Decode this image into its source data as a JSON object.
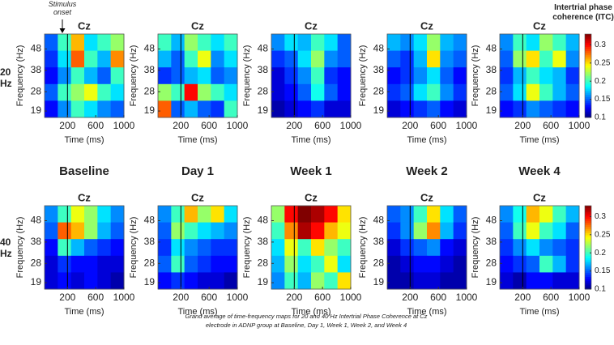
{
  "annotation": "Stimulus onset",
  "row_labels": [
    "20 Hz",
    "40 Hz"
  ],
  "column_labels": [
    "Baseline",
    "Day 1",
    "Week 1",
    "Week 2",
    "Week 4"
  ],
  "caption": "Grand average of time-frequency maps for 20 and 40 Hz Intertrial Phase Coherence at Cz electrode in ADNP group at Baseline, Day 1, Week 1, Week 2, and Week 4",
  "colorbars": [
    {
      "title": "Intertrial phase coherence (ITC)",
      "zlim": [
        0.1,
        0.33
      ],
      "zticks": [
        0.1,
        0.15,
        0.2,
        0.25,
        0.3
      ]
    },
    {
      "zlim": [
        0.1,
        0.33
      ],
      "zticks": [
        0.1,
        0.15,
        0.2,
        0.25,
        0.3
      ]
    }
  ],
  "chart_data": [
    {
      "type": "heatmap",
      "title": "Cz",
      "xlabel": "Time (ms)",
      "ylabel": "Frequency (Hz)",
      "xlim": [
        -125,
        1000
      ],
      "ylim": [
        16,
        55
      ],
      "xticks": [
        200,
        600,
        1000
      ],
      "yticks": [
        19,
        28,
        38,
        48
      ],
      "onset": 200,
      "values": [
        [
          0.15,
          0.2,
          0.26,
          0.18,
          0.2,
          0.22
        ],
        [
          0.14,
          0.18,
          0.28,
          0.2,
          0.17,
          0.27
        ],
        [
          0.13,
          0.16,
          0.2,
          0.17,
          0.15,
          0.2
        ],
        [
          0.15,
          0.2,
          0.22,
          0.24,
          0.2,
          0.18
        ],
        [
          0.13,
          0.16,
          0.2,
          0.18,
          0.16,
          0.15
        ]
      ]
    },
    {
      "type": "heatmap",
      "title": "Cz",
      "xlabel": "Time (ms)",
      "ylabel": "Frequency (Hz)",
      "xlim": [
        -125,
        1000
      ],
      "ylim": [
        16,
        55
      ],
      "xticks": [
        200,
        600,
        1000
      ],
      "yticks": [
        19,
        28,
        38,
        48
      ],
      "onset": 200,
      "values": [
        [
          0.2,
          0.17,
          0.22,
          0.2,
          0.18,
          0.2
        ],
        [
          0.17,
          0.15,
          0.2,
          0.24,
          0.16,
          0.18
        ],
        [
          0.14,
          0.15,
          0.17,
          0.18,
          0.15,
          0.16
        ],
        [
          0.22,
          0.2,
          0.3,
          0.22,
          0.2,
          0.18
        ],
        [
          0.28,
          0.15,
          0.17,
          0.15,
          0.14,
          0.2
        ]
      ]
    },
    {
      "type": "heatmap",
      "title": "Cz",
      "xlabel": "Time (ms)",
      "ylabel": "Frequency (Hz)",
      "xlim": [
        -125,
        1000
      ],
      "ylim": [
        16,
        55
      ],
      "xticks": [
        200,
        600,
        1000
      ],
      "yticks": [
        19,
        28,
        38,
        48
      ],
      "onset": 200,
      "values": [
        [
          0.16,
          0.18,
          0.17,
          0.2,
          0.18,
          0.15
        ],
        [
          0.14,
          0.15,
          0.18,
          0.22,
          0.16,
          0.15
        ],
        [
          0.12,
          0.14,
          0.16,
          0.2,
          0.14,
          0.13
        ],
        [
          0.12,
          0.13,
          0.15,
          0.19,
          0.15,
          0.13
        ],
        [
          0.11,
          0.12,
          0.13,
          0.14,
          0.12,
          0.12
        ]
      ]
    },
    {
      "type": "heatmap",
      "title": "Cz",
      "xlabel": "Time (ms)",
      "ylabel": "Frequency (Hz)",
      "xlim": [
        -125,
        1000
      ],
      "ylim": [
        16,
        55
      ],
      "xticks": [
        200,
        600,
        1000
      ],
      "yticks": [
        19,
        28,
        38,
        48
      ],
      "onset": 200,
      "values": [
        [
          0.17,
          0.16,
          0.18,
          0.22,
          0.17,
          0.16
        ],
        [
          0.15,
          0.14,
          0.17,
          0.25,
          0.16,
          0.15
        ],
        [
          0.13,
          0.14,
          0.16,
          0.18,
          0.15,
          0.13
        ],
        [
          0.14,
          0.15,
          0.18,
          0.2,
          0.16,
          0.14
        ],
        [
          0.12,
          0.13,
          0.14,
          0.15,
          0.13,
          0.12
        ]
      ]
    },
    {
      "type": "heatmap",
      "title": "Cz",
      "xlabel": "Time (ms)",
      "ylabel": "Frequency (Hz)",
      "xlim": [
        -125,
        1000
      ],
      "ylim": [
        16,
        55
      ],
      "xticks": [
        200,
        600,
        1000
      ],
      "yticks": [
        19,
        28,
        38,
        48
      ],
      "onset": 200,
      "values": [
        [
          0.16,
          0.2,
          0.18,
          0.22,
          0.2,
          0.17
        ],
        [
          0.15,
          0.22,
          0.25,
          0.2,
          0.24,
          0.16
        ],
        [
          0.14,
          0.17,
          0.2,
          0.18,
          0.17,
          0.14
        ],
        [
          0.15,
          0.18,
          0.24,
          0.2,
          0.17,
          0.15
        ],
        [
          0.13,
          0.14,
          0.16,
          0.15,
          0.14,
          0.13
        ]
      ]
    },
    {
      "type": "heatmap",
      "title": "Cz",
      "xlabel": "Time (ms)",
      "ylabel": "Frequency (Hz)",
      "xlim": [
        -125,
        1000
      ],
      "ylim": [
        16,
        55
      ],
      "xticks": [
        200,
        600,
        1000
      ],
      "yticks": [
        19,
        28,
        38,
        48
      ],
      "onset": 200,
      "values": [
        [
          0.16,
          0.2,
          0.24,
          0.22,
          0.18,
          0.16
        ],
        [
          0.15,
          0.28,
          0.26,
          0.22,
          0.17,
          0.15
        ],
        [
          0.13,
          0.2,
          0.17,
          0.15,
          0.14,
          0.13
        ],
        [
          0.12,
          0.14,
          0.13,
          0.13,
          0.12,
          0.12
        ],
        [
          0.12,
          0.13,
          0.12,
          0.13,
          0.12,
          0.11
        ]
      ]
    },
    {
      "type": "heatmap",
      "title": "Cz",
      "xlabel": "Time (ms)",
      "ylabel": "Frequency (Hz)",
      "xlim": [
        -125,
        1000
      ],
      "ylim": [
        16,
        55
      ],
      "xticks": [
        200,
        600,
        1000
      ],
      "yticks": [
        19,
        28,
        38,
        48
      ],
      "onset": 200,
      "values": [
        [
          0.16,
          0.2,
          0.26,
          0.22,
          0.25,
          0.18
        ],
        [
          0.15,
          0.22,
          0.2,
          0.18,
          0.17,
          0.16
        ],
        [
          0.14,
          0.18,
          0.16,
          0.15,
          0.14,
          0.14
        ],
        [
          0.15,
          0.2,
          0.15,
          0.14,
          0.13,
          0.13
        ],
        [
          0.13,
          0.14,
          0.13,
          0.12,
          0.12,
          0.11
        ]
      ]
    },
    {
      "type": "heatmap",
      "title": "Cz",
      "xlabel": "Time (ms)",
      "ylabel": "Frequency (Hz)",
      "xlim": [
        -125,
        1000
      ],
      "ylim": [
        16,
        55
      ],
      "xticks": [
        200,
        600,
        1000
      ],
      "yticks": [
        19,
        28,
        38,
        48
      ],
      "onset": 200,
      "values": [
        [
          0.22,
          0.3,
          0.33,
          0.32,
          0.3,
          0.25
        ],
        [
          0.2,
          0.27,
          0.32,
          0.3,
          0.26,
          0.24
        ],
        [
          0.18,
          0.24,
          0.2,
          0.25,
          0.22,
          0.2
        ],
        [
          0.17,
          0.22,
          0.18,
          0.2,
          0.24,
          0.18
        ],
        [
          0.16,
          0.2,
          0.17,
          0.22,
          0.2,
          0.25
        ]
      ]
    },
    {
      "type": "heatmap",
      "title": "Cz",
      "xlabel": "Time (ms)",
      "ylabel": "Frequency (Hz)",
      "xlim": [
        -125,
        1000
      ],
      "ylim": [
        16,
        55
      ],
      "xticks": [
        200,
        600,
        1000
      ],
      "yticks": [
        19,
        28,
        38,
        48
      ],
      "onset": 200,
      "values": [
        [
          0.15,
          0.16,
          0.2,
          0.25,
          0.18,
          0.15
        ],
        [
          0.14,
          0.16,
          0.22,
          0.27,
          0.17,
          0.14
        ],
        [
          0.12,
          0.14,
          0.15,
          0.16,
          0.13,
          0.12
        ],
        [
          0.11,
          0.12,
          0.13,
          0.13,
          0.12,
          0.11
        ],
        [
          0.11,
          0.11,
          0.12,
          0.12,
          0.11,
          0.11
        ]
      ]
    },
    {
      "type": "heatmap",
      "title": "Cz",
      "xlabel": "Time (ms)",
      "ylabel": "Frequency (Hz)",
      "xlim": [
        -125,
        1000
      ],
      "ylim": [
        16,
        55
      ],
      "xticks": [
        200,
        600,
        1000
      ],
      "yticks": [
        19,
        28,
        38,
        48
      ],
      "onset": 200,
      "values": [
        [
          0.16,
          0.19,
          0.26,
          0.24,
          0.2,
          0.17
        ],
        [
          0.15,
          0.2,
          0.24,
          0.2,
          0.18,
          0.15
        ],
        [
          0.14,
          0.16,
          0.18,
          0.16,
          0.15,
          0.14
        ],
        [
          0.13,
          0.14,
          0.15,
          0.2,
          0.17,
          0.14
        ],
        [
          0.12,
          0.11,
          0.13,
          0.13,
          0.12,
          0.12
        ]
      ]
    }
  ]
}
